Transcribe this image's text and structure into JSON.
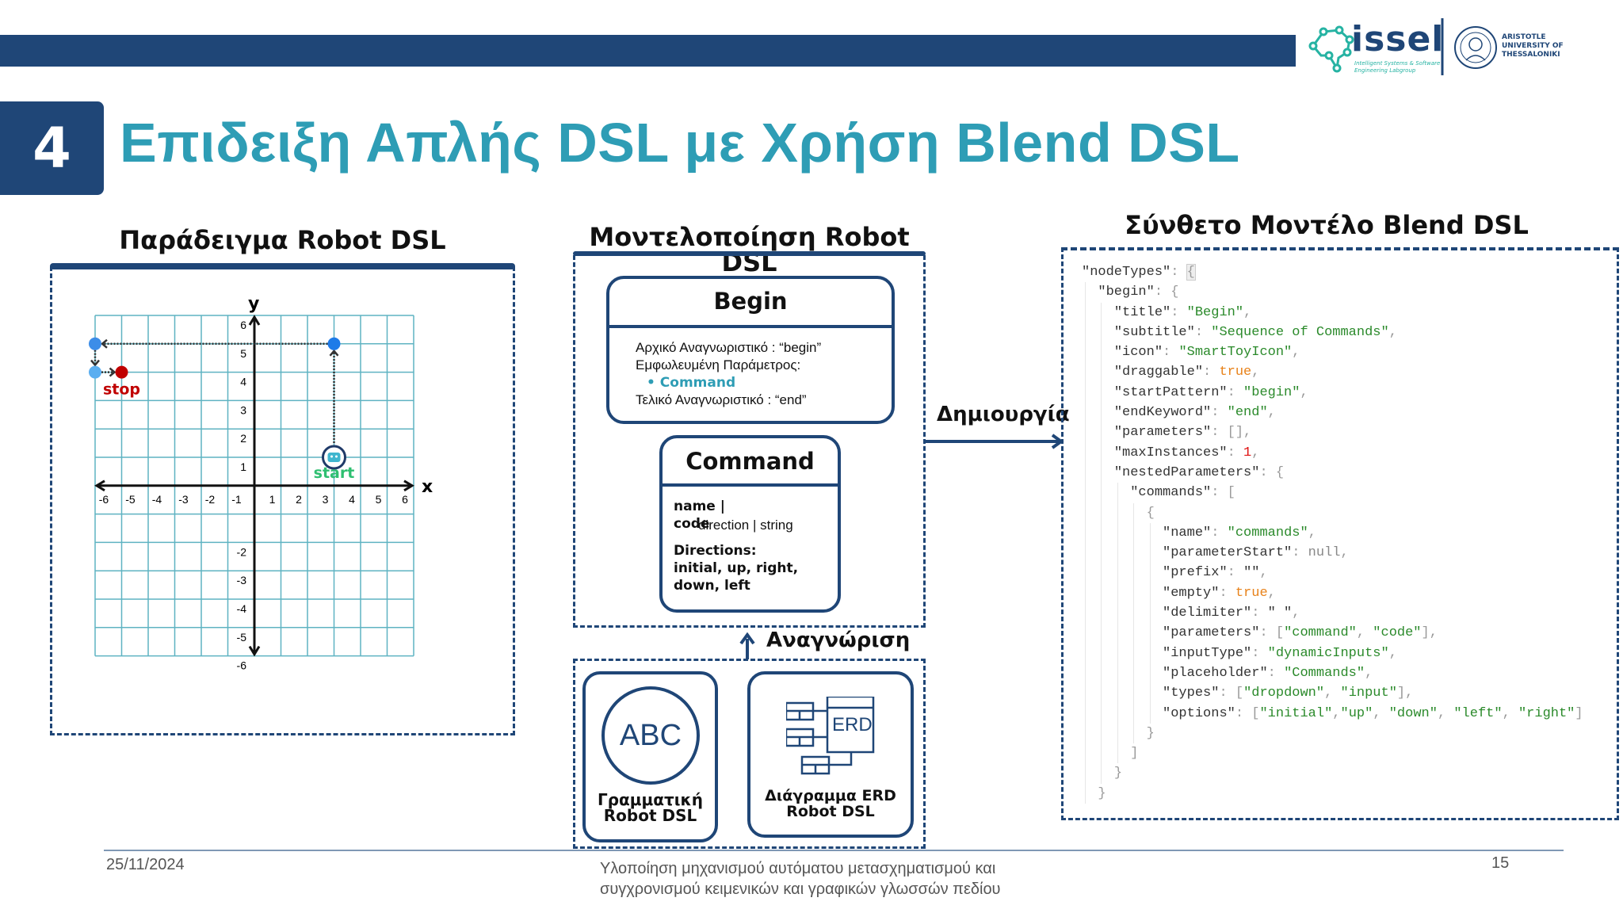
{
  "header": {
    "section_number": "4",
    "title": "Επιδειξη Απλής DSL με Χρήση Blend DSL",
    "logo": {
      "lab_name": "issel",
      "lab_subtitle_1": "Intelligent Systems & Software",
      "lab_subtitle_2": "Engineering Labgroup",
      "university_1": "ARISTOTLE",
      "university_2": "UNIVERSITY OF",
      "university_3": "THESSALONIKI"
    }
  },
  "colors": {
    "navy": "#1f4677",
    "teal": "#2e9db5",
    "grid": "#5fb3c2",
    "stop": "#c00000",
    "start": "#2fbf71",
    "point": "#1e7be8"
  },
  "left_panel": {
    "heading": "Παράδειγμα Robot DSL",
    "axis_x": "x",
    "axis_y": "y",
    "x_ticks": [
      "-6",
      "-5",
      "-4",
      "-3",
      "-2",
      "-1",
      "1",
      "2",
      "3",
      "4",
      "5",
      "6"
    ],
    "y_ticks": [
      "6",
      "5",
      "4",
      "3",
      "2",
      "1",
      "-2",
      "-3",
      "-4",
      "-5",
      "-6"
    ],
    "path_points": [
      {
        "x": 3,
        "y": 1,
        "role": "start"
      },
      {
        "x": 3,
        "y": 5
      },
      {
        "x": -6,
        "y": 5
      },
      {
        "x": -6,
        "y": 4
      },
      {
        "x": -5,
        "y": 4,
        "role": "stop"
      }
    ],
    "start_label": "start",
    "stop_label": "stop"
  },
  "middle_panel": {
    "heading_line1": "Μοντελοποίηση Robot",
    "heading_line2": "DSL",
    "begin_card": {
      "title": "Begin",
      "line1": "Αρχικό Αναγνωριστικό : “begin”",
      "line2": "Εμφωλευμένη Παράμετρος:",
      "bullet": "Command",
      "line3": "Τελικό Αναγνωριστικό : “end”"
    },
    "command_card": {
      "title": "Command",
      "name": "name |",
      "code": "code",
      "type": "direction | string",
      "directions_label": "Directions:",
      "directions_1": "initial, up, right,",
      "directions_2": "down, left"
    },
    "recognition_label": "Αναγνώριση",
    "grammar_card": {
      "icon_text": "ABC",
      "label_1": "Γραμματική",
      "label_2": "Robot DSL"
    },
    "erd_card": {
      "icon_text": "ERD",
      "label_1": "Διάγραμμα ERD",
      "label_2": "Robot DSL"
    }
  },
  "creation_label": "Δημιουργία",
  "right_panel": {
    "heading": "Σύνθετο Μοντέλο Blend DSL",
    "code_lines": [
      {
        "indent": 0,
        "tokens": [
          [
            "k",
            "\"nodeTypes\""
          ],
          [
            "p",
            ": "
          ],
          [
            "hl",
            "{"
          ]
        ]
      },
      {
        "indent": 1,
        "tokens": [
          [
            "k",
            "\"begin\""
          ],
          [
            "p",
            ": {"
          ]
        ]
      },
      {
        "indent": 2,
        "tokens": [
          [
            "k",
            "\"title\""
          ],
          [
            "p",
            ": "
          ],
          [
            "s",
            "\"Begin\""
          ],
          [
            "p",
            ","
          ]
        ]
      },
      {
        "indent": 2,
        "tokens": [
          [
            "k",
            "\"subtitle\""
          ],
          [
            "p",
            ": "
          ],
          [
            "s",
            "\"Sequence of Commands\""
          ],
          [
            "p",
            ","
          ]
        ]
      },
      {
        "indent": 2,
        "tokens": [
          [
            "k",
            "\"icon\""
          ],
          [
            "p",
            ": "
          ],
          [
            "s",
            "\"SmartToyIcon\""
          ],
          [
            "p",
            ","
          ]
        ]
      },
      {
        "indent": 2,
        "tokens": [
          [
            "k",
            "\"draggable\""
          ],
          [
            "p",
            ": "
          ],
          [
            "b",
            "true"
          ],
          [
            "p",
            ","
          ]
        ]
      },
      {
        "indent": 2,
        "tokens": [
          [
            "k",
            "\"startPattern\""
          ],
          [
            "p",
            ": "
          ],
          [
            "s",
            "\"begin\""
          ],
          [
            "p",
            ","
          ]
        ]
      },
      {
        "indent": 2,
        "tokens": [
          [
            "k",
            "\"endKeyword\""
          ],
          [
            "p",
            ": "
          ],
          [
            "s",
            "\"end\""
          ],
          [
            "p",
            ","
          ]
        ]
      },
      {
        "indent": 2,
        "tokens": [
          [
            "k",
            "\"parameters\""
          ],
          [
            "p",
            ": [],"
          ]
        ]
      },
      {
        "indent": 2,
        "tokens": [
          [
            "k",
            "\"maxInstances\""
          ],
          [
            "p",
            ": "
          ],
          [
            "n",
            "1"
          ],
          [
            "p",
            ","
          ]
        ]
      },
      {
        "indent": 2,
        "tokens": [
          [
            "k",
            "\"nestedParameters\""
          ],
          [
            "p",
            ": {"
          ]
        ]
      },
      {
        "indent": 3,
        "tokens": [
          [
            "k",
            "\"commands\""
          ],
          [
            "p",
            ": ["
          ]
        ]
      },
      {
        "indent": 4,
        "tokens": [
          [
            "p",
            "{"
          ]
        ]
      },
      {
        "indent": 5,
        "tokens": [
          [
            "k",
            "\"name\""
          ],
          [
            "p",
            ": "
          ],
          [
            "s",
            "\"commands\""
          ],
          [
            "p",
            ","
          ]
        ]
      },
      {
        "indent": 5,
        "tokens": [
          [
            "k",
            "\"parameterStart\""
          ],
          [
            "p",
            ": "
          ],
          [
            "nl",
            "null"
          ],
          [
            "p",
            ","
          ]
        ]
      },
      {
        "indent": 5,
        "tokens": [
          [
            "k",
            "\"prefix\""
          ],
          [
            "p",
            ": "
          ],
          [
            "k",
            "\"\""
          ],
          [
            "p",
            ","
          ]
        ]
      },
      {
        "indent": 5,
        "tokens": [
          [
            "k",
            "\"empty\""
          ],
          [
            "p",
            ": "
          ],
          [
            "b",
            "true"
          ],
          [
            "p",
            ","
          ]
        ]
      },
      {
        "indent": 5,
        "tokens": [
          [
            "k",
            "\"delimiter\""
          ],
          [
            "p",
            ": "
          ],
          [
            "k",
            "\" \""
          ],
          [
            "p",
            ","
          ]
        ]
      },
      {
        "indent": 5,
        "tokens": [
          [
            "k",
            "\"parameters\""
          ],
          [
            "p",
            ": ["
          ],
          [
            "s",
            "\"command\""
          ],
          [
            "p",
            ", "
          ],
          [
            "s",
            "\"code\""
          ],
          [
            "p",
            "],"
          ]
        ]
      },
      {
        "indent": 5,
        "tokens": [
          [
            "k",
            "\"inputType\""
          ],
          [
            "p",
            ": "
          ],
          [
            "s",
            "\"dynamicInputs\""
          ],
          [
            "p",
            ","
          ]
        ]
      },
      {
        "indent": 5,
        "tokens": [
          [
            "k",
            "\"placeholder\""
          ],
          [
            "p",
            ": "
          ],
          [
            "s",
            "\"Commands\""
          ],
          [
            "p",
            ","
          ]
        ]
      },
      {
        "indent": 5,
        "tokens": [
          [
            "k",
            "\"types\""
          ],
          [
            "p",
            ": ["
          ],
          [
            "s",
            "\"dropdown\""
          ],
          [
            "p",
            ", "
          ],
          [
            "s",
            "\"input\""
          ],
          [
            "p",
            "],"
          ]
        ]
      },
      {
        "indent": 5,
        "tokens": [
          [
            "k",
            "\"options\""
          ],
          [
            "p",
            ": ["
          ],
          [
            "s",
            "\"initial\""
          ],
          [
            "p",
            ","
          ],
          [
            "s",
            "\"up\""
          ],
          [
            "p",
            ", "
          ],
          [
            "s",
            "\"down\""
          ],
          [
            "p",
            ", "
          ],
          [
            "s",
            "\"left\""
          ],
          [
            "p",
            ", "
          ],
          [
            "s",
            "\"right\""
          ],
          [
            "p",
            "]"
          ]
        ]
      },
      {
        "indent": 4,
        "tokens": [
          [
            "p",
            "}"
          ]
        ]
      },
      {
        "indent": 3,
        "tokens": [
          [
            "p",
            "]"
          ]
        ]
      },
      {
        "indent": 2,
        "tokens": [
          [
            "p",
            "}"
          ]
        ]
      },
      {
        "indent": 1,
        "tokens": [
          [
            "p",
            "}"
          ]
        ]
      }
    ]
  },
  "footer": {
    "date": "25/11/2024",
    "center_line1": "Υλοποίηση μηχανισμού αυτόματου μετασχηματισμού και",
    "center_line2": "συγχρονισμού κειμενικών και γραφικών γλωσσών πεδίου",
    "page_number": "15"
  }
}
